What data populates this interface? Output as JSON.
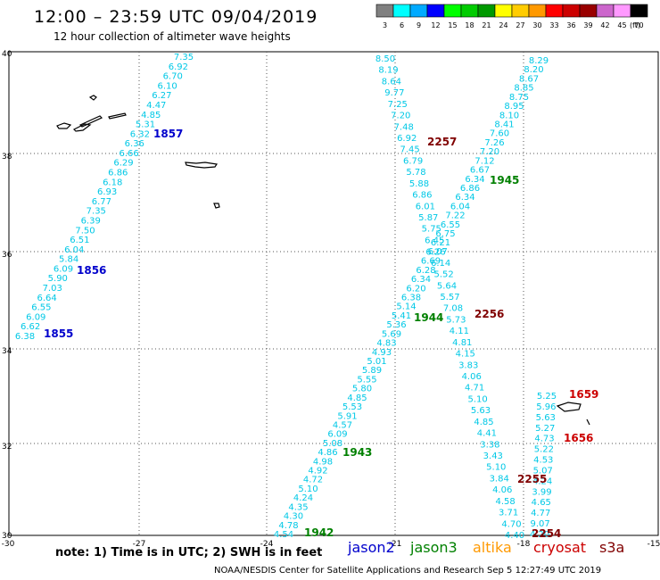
{
  "header": {
    "title": "12:00 – 23:59 UTC 09/04/2019",
    "subtitle": "12 hour collection of altimeter wave heights"
  },
  "colorbar": {
    "unit": "(ft)",
    "entries": [
      {
        "label": "3",
        "color": "#808080"
      },
      {
        "label": "6",
        "color": "#00ffff"
      },
      {
        "label": "9",
        "color": "#00aaff"
      },
      {
        "label": "12",
        "color": "#0000ff"
      },
      {
        "label": "15",
        "color": "#00ff00"
      },
      {
        "label": "18",
        "color": "#00cc00"
      },
      {
        "label": "21",
        "color": "#009900"
      },
      {
        "label": "24",
        "color": "#ffff00"
      },
      {
        "label": "27",
        "color": "#ffcc00"
      },
      {
        "label": "30",
        "color": "#ff9900"
      },
      {
        "label": "33",
        "color": "#ff0000"
      },
      {
        "label": "36",
        "color": "#cc0000"
      },
      {
        "label": "39",
        "color": "#990000"
      },
      {
        "label": "42",
        "color": "#cc66cc"
      },
      {
        "label": "45",
        "color": "#ff99ff"
      },
      {
        "label": "70",
        "color": "#000000"
      }
    ]
  },
  "axes": {
    "lat_labels": [
      "40",
      "38",
      "36",
      "34",
      "32",
      "30"
    ],
    "lon_labels": [
      "-30",
      "-27",
      "-24",
      "-21",
      "-18",
      "-15"
    ]
  },
  "colors": {
    "swh": "#00c8e6",
    "jason2": "#0000cc",
    "jason3": "#008000",
    "altika": "#ff9900",
    "cryosat": "#cc0000",
    "s3a": "#800000"
  },
  "tracks": [
    {
      "values": [
        "7.35",
        "6.92",
        "6.70",
        "6.10",
        "6.27",
        "4.47",
        "4.85",
        "5.31",
        "6.32",
        "6.36",
        "6.66",
        "6.29",
        "6.86",
        "6.18",
        "6.93",
        "6.77",
        "7.35",
        "6.39",
        "7.50",
        "6.51",
        "6.04",
        "5.84",
        "6.09",
        "5.90",
        "7.03",
        "6.64",
        "6.55",
        "6.09",
        "6.62",
        "6.38"
      ]
    },
    {
      "values": [
        "8.50",
        "8.19",
        "8.64",
        "9.77",
        "7.25",
        "7.20",
        "7.48",
        "6.92",
        "7.45",
        "6.79",
        "5.78",
        "5.88",
        "6.86",
        "6.01",
        "5.87",
        "5.75",
        "6.45",
        "6.07",
        "6.14",
        "5.52",
        "5.64",
        "5.57",
        "7.08",
        "5.73",
        "4.11",
        "4.81",
        "4.15",
        "3.83",
        "4.06",
        "4.71",
        "5.10",
        "5.63",
        "4.85",
        "4.41",
        "3.38",
        "3.43",
        "5.10",
        "3.84",
        "4.06",
        "4.58",
        "3.71",
        "4.70",
        "4.40"
      ]
    },
    {
      "values": [
        "8.29",
        "8.20",
        "8.67",
        "8.85",
        "8.75",
        "8.95",
        "8.10",
        "8.41",
        "7.60",
        "7.26",
        "7.20",
        "7.12",
        "6.67",
        "6.34",
        "6.86",
        "6.34",
        "6.04",
        "7.22",
        "6.55",
        "6.75",
        "6.21",
        "6.26",
        "6.69",
        "6.28",
        "6.34",
        "6.20",
        "6.38",
        "5.14",
        "5.41",
        "5.36",
        "5.69",
        "4.83",
        "4.93",
        "5.01",
        "5.89",
        "5.55",
        "5.80",
        "4.85",
        "5.53",
        "5.91",
        "4.57",
        "6.09",
        "5.08",
        "4.86",
        "4.98",
        "4.92",
        "4.72",
        "5.10",
        "4.24",
        "4.35",
        "4.30",
        "4.78",
        "4.54"
      ]
    },
    {
      "values": [
        "5.25",
        "5.96",
        "5.63",
        "5.27",
        "4.73",
        "5.22",
        "4.53",
        "5.07",
        "4.24",
        "3.99",
        "4.65",
        "4.77",
        "9.07",
        "4.20"
      ]
    }
  ],
  "time_labels": [
    {
      "text": "1857",
      "sat": "jason2"
    },
    {
      "text": "1856",
      "sat": "jason2"
    },
    {
      "text": "1855",
      "sat": "jason2"
    },
    {
      "text": "2257",
      "sat": "s3a"
    },
    {
      "text": "1945",
      "sat": "jason3"
    },
    {
      "text": "1944",
      "sat": "jason3"
    },
    {
      "text": "2256",
      "sat": "s3a"
    },
    {
      "text": "1943",
      "sat": "jason3"
    },
    {
      "text": "1942",
      "sat": "jason3"
    },
    {
      "text": "1659",
      "sat": "cryosat"
    },
    {
      "text": "1656",
      "sat": "cryosat"
    },
    {
      "text": "2255",
      "sat": "s3a"
    },
    {
      "text": "2254",
      "sat": "s3a"
    }
  ],
  "footer": {
    "note": "note:  1) Time is in UTC;  2) SWH is in feet",
    "credit": "NOAA/NESDIS Center for Satellite Applications and Research     Sep  5 12:27:49 UTC 2019",
    "legend": [
      {
        "name": "jason2",
        "key": "jason2"
      },
      {
        "name": "jason3",
        "key": "jason3"
      },
      {
        "name": "altika",
        "key": "altika"
      },
      {
        "name": "cryosat",
        "key": "cryosat"
      },
      {
        "name": "s3a",
        "key": "s3a"
      }
    ]
  }
}
